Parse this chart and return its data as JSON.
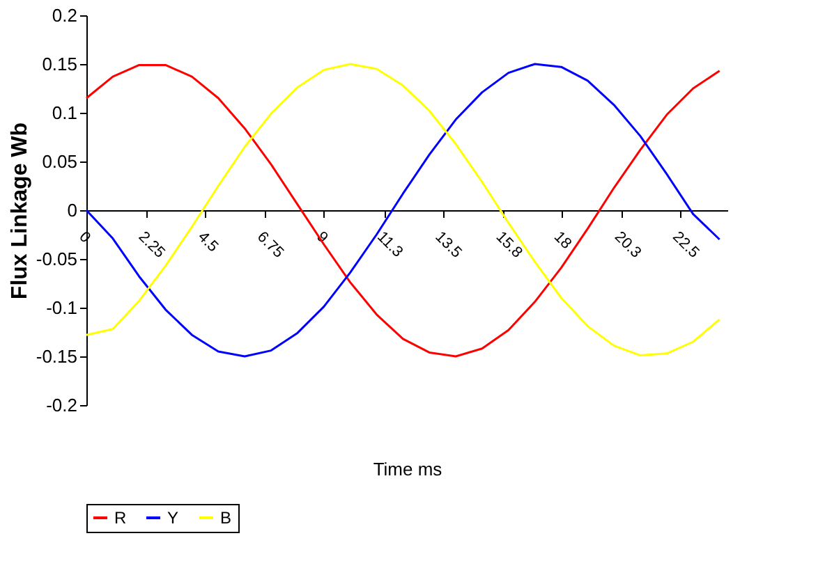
{
  "chart_data": {
    "type": "line",
    "xlabel": "Time ms",
    "ylabel": "Flux Linkage Wb",
    "x": [
      0,
      1,
      2,
      3,
      4,
      5,
      6,
      7,
      8,
      9,
      10,
      11,
      12,
      13,
      14,
      15,
      16,
      17,
      18,
      19,
      20,
      21,
      22,
      23,
      24
    ],
    "series": [
      {
        "name": "R",
        "color": "#ff0000",
        "values": [
          0.115,
          0.137,
          0.149,
          0.149,
          0.137,
          0.115,
          0.084,
          0.047,
          0.006,
          -0.035,
          -0.074,
          -0.107,
          -0.132,
          -0.146,
          -0.15,
          -0.142,
          -0.123,
          -0.094,
          -0.059,
          -0.019,
          0.023,
          0.062,
          0.098,
          0.125,
          0.143
        ]
      },
      {
        "name": "Y",
        "color": "#0000ff",
        "values": [
          0.0,
          -0.029,
          -0.068,
          -0.102,
          -0.128,
          -0.145,
          -0.15,
          -0.144,
          -0.126,
          -0.099,
          -0.064,
          -0.025,
          0.017,
          0.057,
          0.093,
          0.121,
          0.141,
          0.15,
          0.147,
          0.133,
          0.108,
          0.076,
          0.037,
          -0.004,
          -0.03
        ]
      },
      {
        "name": "B",
        "color": "#ffff00",
        "values": [
          -0.128,
          -0.122,
          -0.093,
          -0.057,
          -0.017,
          0.025,
          0.065,
          0.099,
          0.126,
          0.144,
          0.15,
          0.145,
          0.128,
          0.102,
          0.068,
          0.029,
          -0.013,
          -0.053,
          -0.09,
          -0.119,
          -0.139,
          -0.149,
          -0.147,
          -0.135,
          -0.112
        ]
      }
    ],
    "xlim": [
      0,
      24.3
    ],
    "xticks": [
      0,
      2.25,
      4.5,
      6.75,
      9,
      11.3,
      13.5,
      15.8,
      18,
      20.3,
      22.5
    ],
    "ylim": [
      -0.2,
      0.2
    ],
    "yticks": [
      0.2,
      0.15,
      0.1,
      0.05,
      0,
      -0.05,
      -0.1,
      -0.15,
      -0.2
    ],
    "grid": false,
    "legend": "bottom",
    "marker": "none",
    "line_style": "solid"
  }
}
